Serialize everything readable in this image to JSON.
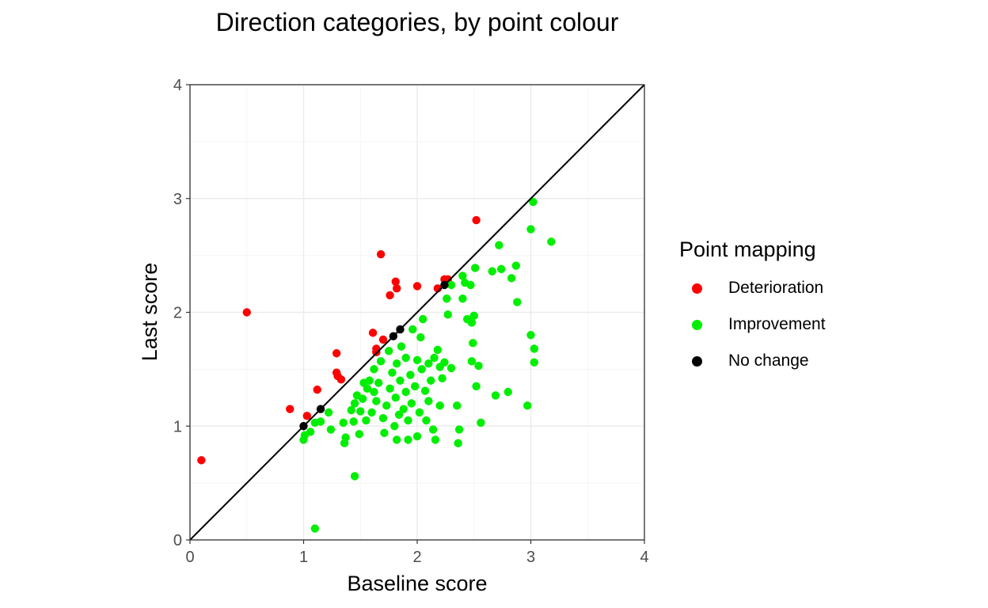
{
  "chart_data": {
    "type": "scatter",
    "title": "Direction categories, by point colour",
    "xlabel": "Baseline score",
    "ylabel": "Last score",
    "xlim": [
      0,
      4
    ],
    "ylim": [
      0,
      4
    ],
    "xticks": [
      "0",
      "1",
      "2",
      "3",
      "4"
    ],
    "yticks": [
      "0",
      "1",
      "2",
      "3",
      "4"
    ],
    "grid": true,
    "reference_line": "y = x",
    "legend": {
      "title": "Point mapping",
      "placement": "right",
      "entries": [
        {
          "label": "Deterioration",
          "color": "#ff0000"
        },
        {
          "label": "Improvement",
          "color": "#00ee00"
        },
        {
          "label": "No change",
          "color": "#000000"
        }
      ]
    },
    "series": [
      {
        "name": "Deterioration",
        "color": "#ff0000",
        "points": [
          [
            0.1,
            0.7
          ],
          [
            0.5,
            2.0
          ],
          [
            0.88,
            1.15
          ],
          [
            1.03,
            1.09
          ],
          [
            1.12,
            1.32
          ],
          [
            1.29,
            1.64
          ],
          [
            1.29,
            1.47
          ],
          [
            1.3,
            1.44
          ],
          [
            1.33,
            1.41
          ],
          [
            1.61,
            1.82
          ],
          [
            1.64,
            1.68
          ],
          [
            1.64,
            1.65
          ],
          [
            1.68,
            2.51
          ],
          [
            1.7,
            1.76
          ],
          [
            1.76,
            2.15
          ],
          [
            1.81,
            2.27
          ],
          [
            1.82,
            2.21
          ],
          [
            2.0,
            2.23
          ],
          [
            2.18,
            2.21
          ],
          [
            2.24,
            2.29
          ],
          [
            2.27,
            2.29
          ],
          [
            2.52,
            2.81
          ]
        ]
      },
      {
        "name": "Improvement",
        "color": "#00ee00",
        "points": [
          [
            1.1,
            0.1
          ],
          [
            1.45,
            0.56
          ],
          [
            1.0,
            0.88
          ],
          [
            1.01,
            0.92
          ],
          [
            1.06,
            0.95
          ],
          [
            1.1,
            1.03
          ],
          [
            1.15,
            1.04
          ],
          [
            1.22,
            1.12
          ],
          [
            1.24,
            0.97
          ],
          [
            1.35,
            1.03
          ],
          [
            1.36,
            0.85
          ],
          [
            1.37,
            0.9
          ],
          [
            1.42,
            1.14
          ],
          [
            1.44,
            1.04
          ],
          [
            1.45,
            1.2
          ],
          [
            1.47,
            1.27
          ],
          [
            1.49,
            0.93
          ],
          [
            1.5,
            1.13
          ],
          [
            1.52,
            1.24
          ],
          [
            1.53,
            1.38
          ],
          [
            1.55,
            1.05
          ],
          [
            1.56,
            1.33
          ],
          [
            1.58,
            1.4
          ],
          [
            1.6,
            1.12
          ],
          [
            1.62,
            1.3
          ],
          [
            1.62,
            1.5
          ],
          [
            1.64,
            1.22
          ],
          [
            1.66,
            1.38
          ],
          [
            1.68,
            1.57
          ],
          [
            1.7,
            1.07
          ],
          [
            1.71,
            0.94
          ],
          [
            1.73,
            1.18
          ],
          [
            1.75,
            1.66
          ],
          [
            1.76,
            1.33
          ],
          [
            1.78,
            1.47
          ],
          [
            1.8,
            1.0
          ],
          [
            1.81,
            1.25
          ],
          [
            1.82,
            1.55
          ],
          [
            1.82,
            0.88
          ],
          [
            1.84,
            1.1
          ],
          [
            1.85,
            1.4
          ],
          [
            1.86,
            1.7
          ],
          [
            1.88,
            1.15
          ],
          [
            1.9,
            1.6
          ],
          [
            1.9,
            1.3
          ],
          [
            1.92,
            1.05
          ],
          [
            1.92,
            0.88
          ],
          [
            1.94,
            1.45
          ],
          [
            1.95,
            1.2
          ],
          [
            1.96,
            1.85
          ],
          [
            1.98,
            1.35
          ],
          [
            2.0,
            1.58
          ],
          [
            2.0,
            0.91
          ],
          [
            2.02,
            1.12
          ],
          [
            2.03,
            1.78
          ],
          [
            2.04,
            1.5
          ],
          [
            2.05,
            1.94
          ],
          [
            2.07,
            1.31
          ],
          [
            2.08,
            1.05
          ],
          [
            2.1,
            1.55
          ],
          [
            2.1,
            1.22
          ],
          [
            2.12,
            1.4
          ],
          [
            2.14,
            0.97
          ],
          [
            2.15,
            1.6
          ],
          [
            2.16,
            0.88
          ],
          [
            2.18,
            1.67
          ],
          [
            2.2,
            1.52
          ],
          [
            2.2,
            1.18
          ],
          [
            2.22,
            1.42
          ],
          [
            2.24,
            1.56
          ],
          [
            2.26,
            2.12
          ],
          [
            2.27,
            1.98
          ],
          [
            2.3,
            2.24
          ],
          [
            2.3,
            1.51
          ],
          [
            2.35,
            1.18
          ],
          [
            2.36,
            0.85
          ],
          [
            2.37,
            0.97
          ],
          [
            2.4,
            2.32
          ],
          [
            2.4,
            2.12
          ],
          [
            2.42,
            2.26
          ],
          [
            2.44,
            1.94
          ],
          [
            2.47,
            2.24
          ],
          [
            2.48,
            1.91
          ],
          [
            2.48,
            1.57
          ],
          [
            2.49,
            1.73
          ],
          [
            2.5,
            1.97
          ],
          [
            2.51,
            2.39
          ],
          [
            2.52,
            1.35
          ],
          [
            2.54,
            1.53
          ],
          [
            2.56,
            1.03
          ],
          [
            2.66,
            2.36
          ],
          [
            2.69,
            1.27
          ],
          [
            2.72,
            2.59
          ],
          [
            2.74,
            2.38
          ],
          [
            2.8,
            1.3
          ],
          [
            2.83,
            2.3
          ],
          [
            2.87,
            2.41
          ],
          [
            2.88,
            2.09
          ],
          [
            2.97,
            1.18
          ],
          [
            3.0,
            2.73
          ],
          [
            3.0,
            1.8
          ],
          [
            3.02,
            2.97
          ],
          [
            3.03,
            1.68
          ],
          [
            3.03,
            1.56
          ],
          [
            3.18,
            2.62
          ]
        ]
      },
      {
        "name": "No change",
        "color": "#000000",
        "points": [
          [
            1.0,
            1.0
          ],
          [
            1.15,
            1.15
          ],
          [
            1.79,
            1.79
          ],
          [
            1.85,
            1.85
          ],
          [
            2.24,
            2.24
          ]
        ]
      }
    ]
  }
}
